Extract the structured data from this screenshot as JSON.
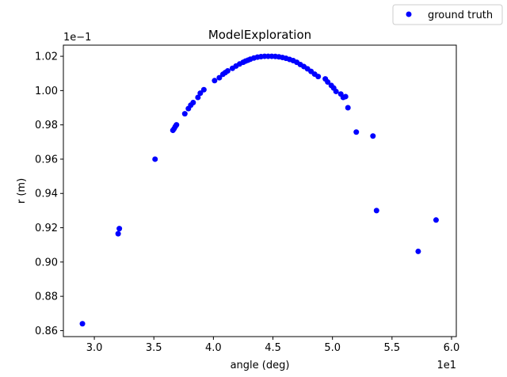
{
  "chart_data": {
    "type": "scatter",
    "title": "ModelExploration",
    "xlabel": "angle (deg)",
    "ylabel": "r (m)",
    "x_multiplier_label": "1e1",
    "y_multiplier_label": "1e−1",
    "xlim": [
      2.74,
      6.04
    ],
    "ylim": [
      0.8565,
      1.0265
    ],
    "xticks": [
      3.0,
      3.5,
      4.0,
      4.5,
      5.0,
      5.5,
      6.0
    ],
    "xtick_labels": [
      "3.0",
      "3.5",
      "4.0",
      "4.5",
      "5.0",
      "5.5",
      "6.0"
    ],
    "yticks": [
      0.86,
      0.88,
      0.9,
      0.92,
      0.94,
      0.96,
      0.98,
      1.0,
      1.02
    ],
    "ytick_labels": [
      "0.86",
      "0.88",
      "0.90",
      "0.92",
      "0.94",
      "0.96",
      "0.98",
      "1.00",
      "1.02"
    ],
    "grid": false,
    "legend_position": "outside-top-right",
    "marker_color": "#0000ff",
    "series": [
      {
        "name": "ground truth",
        "x": [
          2.9,
          3.2,
          3.21,
          3.51,
          3.66,
          3.67,
          3.68,
          3.69,
          3.76,
          3.79,
          3.81,
          3.83,
          3.87,
          3.89,
          3.92,
          4.01,
          4.05,
          4.08,
          4.1,
          4.12,
          4.16,
          4.19,
          4.22,
          4.25,
          4.27,
          4.29,
          4.31,
          4.34,
          4.37,
          4.4,
          4.43,
          4.46,
          4.49,
          4.52,
          4.55,
          4.58,
          4.61,
          4.64,
          4.67,
          4.7,
          4.73,
          4.76,
          4.79,
          4.82,
          4.85,
          4.88,
          4.94,
          4.96,
          4.99,
          5.01,
          5.03,
          5.07,
          5.09,
          5.11,
          5.13,
          5.2,
          5.34,
          5.37,
          5.72,
          5.87
        ],
        "y": [
          0.864,
          0.9165,
          0.9195,
          0.96,
          0.9768,
          0.9778,
          0.979,
          0.98,
          0.9865,
          0.9895,
          0.9915,
          0.993,
          0.996,
          0.9985,
          1.0005,
          1.0058,
          1.0075,
          1.0095,
          1.0105,
          1.0115,
          1.013,
          1.0143,
          1.0155,
          1.0165,
          1.0172,
          1.0177,
          1.0183,
          1.019,
          1.0195,
          1.0198,
          1.02,
          1.02,
          1.02,
          1.0199,
          1.0197,
          1.0193,
          1.0188,
          1.0182,
          1.0175,
          1.0165,
          1.0152,
          1.014,
          1.0127,
          1.0112,
          1.0096,
          1.0082,
          1.0068,
          1.005,
          1.003,
          1.0015,
          0.9995,
          0.998,
          0.996,
          0.9965,
          0.99,
          0.9758,
          0.9735,
          0.93,
          0.9062,
          0.9245
        ]
      }
    ]
  }
}
